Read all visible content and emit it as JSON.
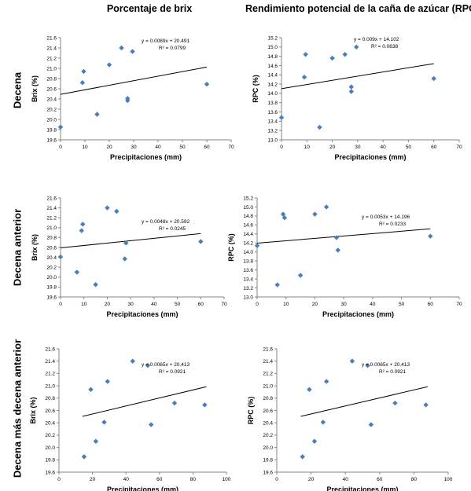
{
  "titles": {
    "left": "Porcentaje de brix",
    "right": "Rendimiento potencial de la caña de azúcar (RPC)"
  },
  "rows": [
    "Decena",
    "Decena anterior",
    "Decena más decena anterior"
  ],
  "colors": {
    "marker": "#4a7ebb",
    "trend": "#000000"
  },
  "chart_data": [
    {
      "type": "scatter",
      "xlabel": "Precipitaciones (mm)",
      "ylabel": "Brix (%)",
      "xlim": [
        0,
        70
      ],
      "ylim": [
        19.6,
        21.6
      ],
      "xticks": [
        "0",
        "10",
        "20",
        "30",
        "40",
        "50",
        "60",
        "70"
      ],
      "yticks": [
        "19.6",
        "19.8",
        "20.0",
        "20.2",
        "20.4",
        "20.6",
        "20.8",
        "21.0",
        "21.2",
        "21.4",
        "21.6"
      ],
      "points": [
        [
          0,
          19.85
        ],
        [
          9,
          20.72
        ],
        [
          9.5,
          20.94
        ],
        [
          15,
          20.1
        ],
        [
          20,
          21.07
        ],
        [
          25,
          21.4
        ],
        [
          27.5,
          20.37
        ],
        [
          27.5,
          20.41
        ],
        [
          29.5,
          21.33
        ],
        [
          60,
          20.69
        ]
      ],
      "trend": {
        "slope": 0.0089,
        "intercept": 20.491
      },
      "equation": "y = 0.0089x + 20.491",
      "r2": "R² = 0.0799"
    },
    {
      "type": "scatter",
      "xlabel": "Precipitaciones (mm)",
      "ylabel": "RPC (%)",
      "xlim": [
        0,
        70
      ],
      "ylim": [
        13.0,
        15.2
      ],
      "xticks": [
        "0",
        "10",
        "20",
        "30",
        "40",
        "50",
        "60",
        "70"
      ],
      "yticks": [
        "13.0",
        "13.2",
        "13.4",
        "13.6",
        "13.8",
        "14.0",
        "14.2",
        "14.4",
        "14.6",
        "14.8",
        "15.0",
        "15.2"
      ],
      "points": [
        [
          0,
          13.48
        ],
        [
          9,
          14.35
        ],
        [
          9.5,
          14.84
        ],
        [
          15,
          13.27
        ],
        [
          20,
          14.76
        ],
        [
          25,
          14.84
        ],
        [
          27.5,
          14.04
        ],
        [
          27.5,
          14.14
        ],
        [
          29.5,
          15.0
        ],
        [
          60,
          14.32
        ]
      ],
      "trend": {
        "slope": 0.009,
        "intercept": 14.102
      },
      "equation": "y = 0.009x + 14.102",
      "r2": "R² = 0.0638"
    },
    {
      "type": "scatter",
      "xlabel": "Precipitaciones (mm)",
      "ylabel": "Brix (%)",
      "xlim": [
        0,
        70
      ],
      "ylim": [
        19.6,
        21.6
      ],
      "xticks": [
        "0",
        "10",
        "20",
        "30",
        "40",
        "50",
        "60",
        "70"
      ],
      "yticks": [
        "19.6",
        "19.8",
        "20.0",
        "20.2",
        "20.4",
        "20.6",
        "20.8",
        "21.0",
        "21.2",
        "21.4",
        "21.6"
      ],
      "points": [
        [
          0,
          20.41
        ],
        [
          7,
          20.1
        ],
        [
          9,
          20.94
        ],
        [
          9.5,
          21.07
        ],
        [
          15,
          19.85
        ],
        [
          20,
          21.4
        ],
        [
          24,
          21.33
        ],
        [
          27.5,
          20.37
        ],
        [
          28,
          20.69
        ],
        [
          60,
          20.72
        ]
      ],
      "trend": {
        "slope": 0.0048,
        "intercept": 20.592
      },
      "equation": "y = 0.0048x + 20.592",
      "r2": "R² = 0.0245"
    },
    {
      "type": "scatter",
      "xlabel": "Precipitaciones (mm)",
      "ylabel": "RPC (%)",
      "xlim": [
        0,
        70
      ],
      "ylim": [
        13.0,
        15.2
      ],
      "xticks": [
        "0",
        "10",
        "20",
        "30",
        "40",
        "50",
        "60",
        "70"
      ],
      "yticks": [
        "13.0",
        "13.2",
        "13.4",
        "13.6",
        "13.8",
        "14.0",
        "14.2",
        "14.4",
        "14.6",
        "14.8",
        "15.0",
        "15.2"
      ],
      "points": [
        [
          0,
          14.14
        ],
        [
          7,
          13.27
        ],
        [
          9,
          14.84
        ],
        [
          9.5,
          14.76
        ],
        [
          15,
          13.48
        ],
        [
          20,
          14.84
        ],
        [
          24,
          15.0
        ],
        [
          27.5,
          14.32
        ],
        [
          28,
          14.04
        ],
        [
          60,
          14.35
        ]
      ],
      "trend": {
        "slope": 0.0053,
        "intercept": 14.196
      },
      "equation": "y = 0.0053x + 14.196",
      "r2": "R² = 0.0233"
    },
    {
      "type": "scatter",
      "xlabel": "Precipitaciones (mm)",
      "ylabel": "Brix (%)",
      "xlim": [
        0,
        100
      ],
      "ylim": [
        19.6,
        21.6
      ],
      "xticks": [
        "0",
        "20",
        "40",
        "60",
        "80",
        "100"
      ],
      "yticks": [
        "19.6",
        "19.8",
        "20.0",
        "20.2",
        "20.4",
        "20.6",
        "20.8",
        "21.0",
        "21.2",
        "21.4",
        "21.6"
      ],
      "points": [
        [
          15,
          19.85
        ],
        [
          19,
          20.94
        ],
        [
          22,
          20.1
        ],
        [
          27,
          20.41
        ],
        [
          29,
          21.07
        ],
        [
          44,
          21.4
        ],
        [
          53,
          21.33
        ],
        [
          55,
          20.37
        ],
        [
          69,
          20.72
        ],
        [
          87,
          20.69
        ]
      ],
      "trend": {
        "slope": 0.0065,
        "intercept": 20.413
      },
      "equation": "y = 0.0065x + 20.413",
      "r2": "R² = 0.0921"
    },
    {
      "type": "scatter",
      "xlabel": "Precipitaciones (mm)",
      "ylabel": "RPC (%)",
      "xlim": [
        0,
        100
      ],
      "ylim": [
        19.6,
        21.6
      ],
      "xticks": [
        "0",
        "20",
        "40",
        "60",
        "80",
        "100"
      ],
      "yticks": [
        "19.6",
        "19.8",
        "20.0",
        "20.2",
        "20.4",
        "20.6",
        "20.8",
        "21.0",
        "21.2",
        "21.4",
        "21.6"
      ],
      "points": [
        [
          15,
          19.85
        ],
        [
          19,
          20.94
        ],
        [
          22,
          20.1
        ],
        [
          27,
          20.41
        ],
        [
          29,
          21.07
        ],
        [
          44,
          21.4
        ],
        [
          53,
          21.33
        ],
        [
          55,
          20.37
        ],
        [
          69,
          20.72
        ],
        [
          87,
          20.69
        ]
      ],
      "trend": {
        "slope": 0.0065,
        "intercept": 20.413
      },
      "equation": "y = 0.0065x + 20.413",
      "r2": "R² = 0.0921"
    }
  ]
}
